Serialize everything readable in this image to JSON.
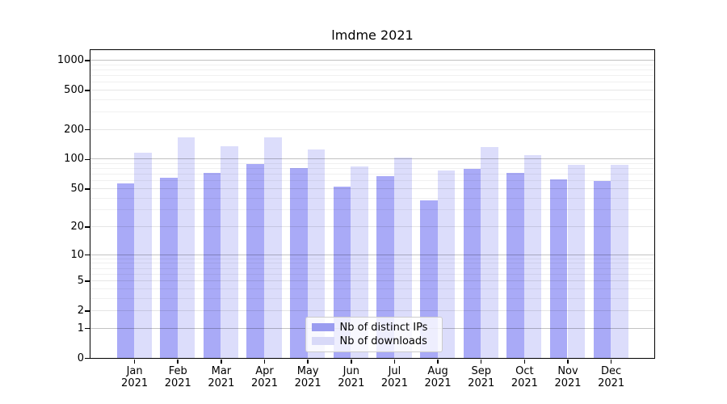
{
  "chart_data": {
    "type": "bar",
    "title": "lmdme 2021",
    "categories": [
      "Jan 2021",
      "Feb 2021",
      "Mar 2021",
      "Apr 2021",
      "May 2021",
      "Jun 2021",
      "Jul 2021",
      "Aug 2021",
      "Sep 2021",
      "Oct 2021",
      "Nov 2021",
      "Dec 2021"
    ],
    "series": [
      {
        "name": "Nb of distinct IPs",
        "bar_color": "#a9aaf7",
        "legend_color": "#9a9cf0",
        "values": [
          57,
          64,
          73,
          89,
          81,
          52,
          67,
          38,
          79,
          72,
          62,
          60
        ]
      },
      {
        "name": "Nb of downloads",
        "bar_color": "#dcddfb",
        "legend_color": "#d8d9f8",
        "values": [
          116,
          165,
          135,
          165,
          126,
          85,
          103,
          76,
          133,
          109,
          88,
          87
        ]
      }
    ],
    "yscale": "log1p",
    "ylim": [
      0,
      1280
    ],
    "yticks": [
      0,
      1,
      2,
      5,
      10,
      20,
      50,
      100,
      200,
      500,
      1000
    ],
    "major_grid_values": [
      1,
      10,
      100,
      1000
    ],
    "grid": true,
    "legend_position": "lower-center",
    "axis_color": "#000000",
    "major_grid_color": "rgba(0,0,0,0.24)",
    "mid_grid_color": "rgba(0,0,0,0.10)",
    "minor_grid_color": "rgba(0,0,0,0.06)"
  }
}
